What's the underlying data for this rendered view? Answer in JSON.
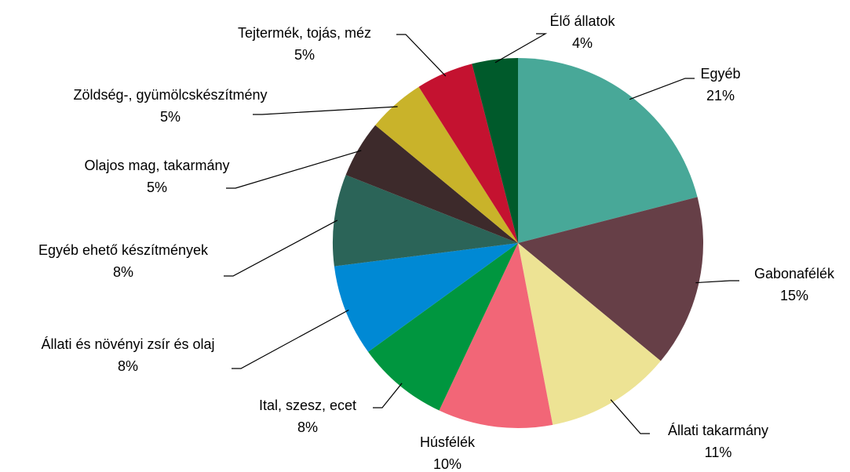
{
  "chart_data": {
    "type": "pie",
    "categories": [
      "Egyéb",
      "Gabonafélék",
      "Állati takarmány",
      "Húsfélék",
      "Ital, szesz, ecet",
      "Állati és növényi zsír és olaj",
      "Egyéb ehető készítmények",
      "Olajos mag, takarmány",
      "Zöldség-, gyümölcskészítmény",
      "Tejtermék, tojás, méz",
      "Élő állatok"
    ],
    "values": [
      21,
      15,
      11,
      10,
      8,
      8,
      8,
      5,
      5,
      5,
      4
    ],
    "value_labels": [
      "21%",
      "15%",
      "11%",
      "10%",
      "8%",
      "8%",
      "8%",
      "5%",
      "5%",
      "5%",
      "4%"
    ],
    "colors": [
      "#48a898",
      "#663f47",
      "#ede394",
      "#f26677",
      "#00963f",
      "#0089d4",
      "#2b6458",
      "#3d2a2b",
      "#c9b32a",
      "#c41230",
      "#005a2b"
    ]
  }
}
